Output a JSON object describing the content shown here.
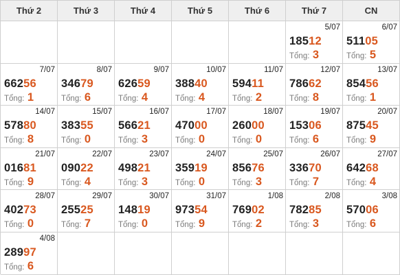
{
  "headers": [
    "Thứ 2",
    "Thứ 3",
    "Thứ 4",
    "Thứ 5",
    "Thứ 6",
    "Thứ 7",
    "CN"
  ],
  "total_label": "Tổng:",
  "weeks": [
    [
      null,
      null,
      null,
      null,
      null,
      {
        "date": "5/07",
        "prefix": "185",
        "suffix": "12",
        "total": "3"
      },
      {
        "date": "6/07",
        "prefix": "511",
        "suffix": "05",
        "total": "5"
      }
    ],
    [
      {
        "date": "7/07",
        "prefix": "662",
        "suffix": "56",
        "total": "1"
      },
      {
        "date": "8/07",
        "prefix": "346",
        "suffix": "79",
        "total": "6"
      },
      {
        "date": "9/07",
        "prefix": "626",
        "suffix": "59",
        "total": "4"
      },
      {
        "date": "10/07",
        "prefix": "388",
        "suffix": "40",
        "total": "4"
      },
      {
        "date": "11/07",
        "prefix": "594",
        "suffix": "11",
        "total": "2"
      },
      {
        "date": "12/07",
        "prefix": "786",
        "suffix": "62",
        "total": "8"
      },
      {
        "date": "13/07",
        "prefix": "854",
        "suffix": "56",
        "total": "1"
      }
    ],
    [
      {
        "date": "14/07",
        "prefix": "578",
        "suffix": "80",
        "total": "8"
      },
      {
        "date": "15/07",
        "prefix": "383",
        "suffix": "55",
        "total": "0"
      },
      {
        "date": "16/07",
        "prefix": "566",
        "suffix": "21",
        "total": "3"
      },
      {
        "date": "17/07",
        "prefix": "470",
        "suffix": "00",
        "total": "0"
      },
      {
        "date": "18/07",
        "prefix": "260",
        "suffix": "00",
        "total": "0"
      },
      {
        "date": "19/07",
        "prefix": "153",
        "suffix": "06",
        "total": "6"
      },
      {
        "date": "20/07",
        "prefix": "875",
        "suffix": "45",
        "total": "9"
      }
    ],
    [
      {
        "date": "21/07",
        "prefix": "016",
        "suffix": "81",
        "total": "9"
      },
      {
        "date": "22/07",
        "prefix": "090",
        "suffix": "22",
        "total": "4"
      },
      {
        "date": "23/07",
        "prefix": "498",
        "suffix": "21",
        "total": "3"
      },
      {
        "date": "24/07",
        "prefix": "359",
        "suffix": "19",
        "total": "0"
      },
      {
        "date": "25/07",
        "prefix": "856",
        "suffix": "76",
        "total": "3"
      },
      {
        "date": "26/07",
        "prefix": "336",
        "suffix": "70",
        "total": "7"
      },
      {
        "date": "27/07",
        "prefix": "642",
        "suffix": "68",
        "total": "4"
      }
    ],
    [
      {
        "date": "28/07",
        "prefix": "402",
        "suffix": "73",
        "total": "0"
      },
      {
        "date": "29/07",
        "prefix": "255",
        "suffix": "25",
        "total": "7"
      },
      {
        "date": "30/07",
        "prefix": "148",
        "suffix": "19",
        "total": "0"
      },
      {
        "date": "31/07",
        "prefix": "973",
        "suffix": "54",
        "total": "9"
      },
      {
        "date": "1/08",
        "prefix": "769",
        "suffix": "02",
        "total": "2"
      },
      {
        "date": "2/08",
        "prefix": "782",
        "suffix": "85",
        "total": "3"
      },
      {
        "date": "3/08",
        "prefix": "570",
        "suffix": "06",
        "total": "6"
      }
    ],
    [
      {
        "date": "4/08",
        "prefix": "289",
        "suffix": "97",
        "total": "6"
      },
      null,
      null,
      null,
      null,
      null,
      null
    ]
  ]
}
